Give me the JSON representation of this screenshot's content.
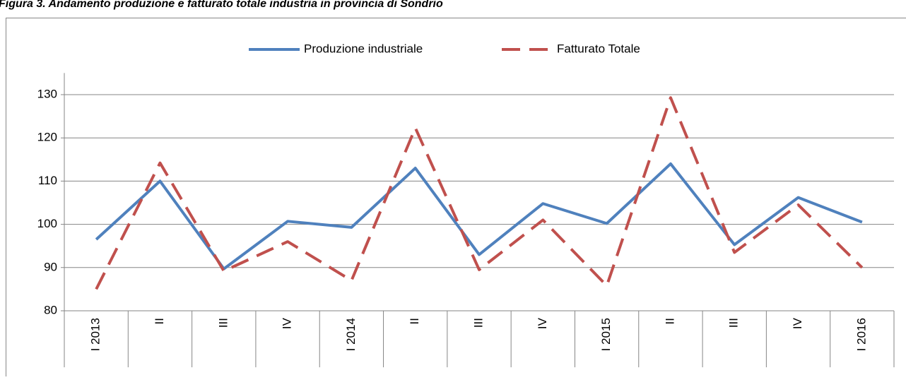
{
  "chart_data": {
    "type": "line",
    "title": "Figura 3. Andamento produzione e fatturato totale industria in provincia di Sondrio",
    "categories": [
      "I 2013",
      "II",
      "III",
      "IV",
      "I 2014",
      "II",
      "III",
      "IV",
      "I 2015",
      "II",
      "III",
      "IV",
      "I 2016"
    ],
    "series": [
      {
        "name": "Produzione industriale",
        "color": "#4f81bd",
        "dash": "solid",
        "values": [
          96.5,
          110,
          89.7,
          100.7,
          99.3,
          113,
          93,
          104.8,
          100.2,
          114,
          95.3,
          106.2,
          100.5
        ]
      },
      {
        "name": "Fatturato Totale",
        "color": "#c0504d",
        "dash": "dashed",
        "values": [
          85,
          114.2,
          89.2,
          96,
          87,
          122.3,
          89.5,
          101,
          85.8,
          129.3,
          93.5,
          104.5,
          90
        ]
      }
    ],
    "ylim": [
      80,
      135
    ],
    "yticks": [
      80,
      90,
      100,
      110,
      120,
      130
    ],
    "grid": true,
    "legend": "top"
  }
}
